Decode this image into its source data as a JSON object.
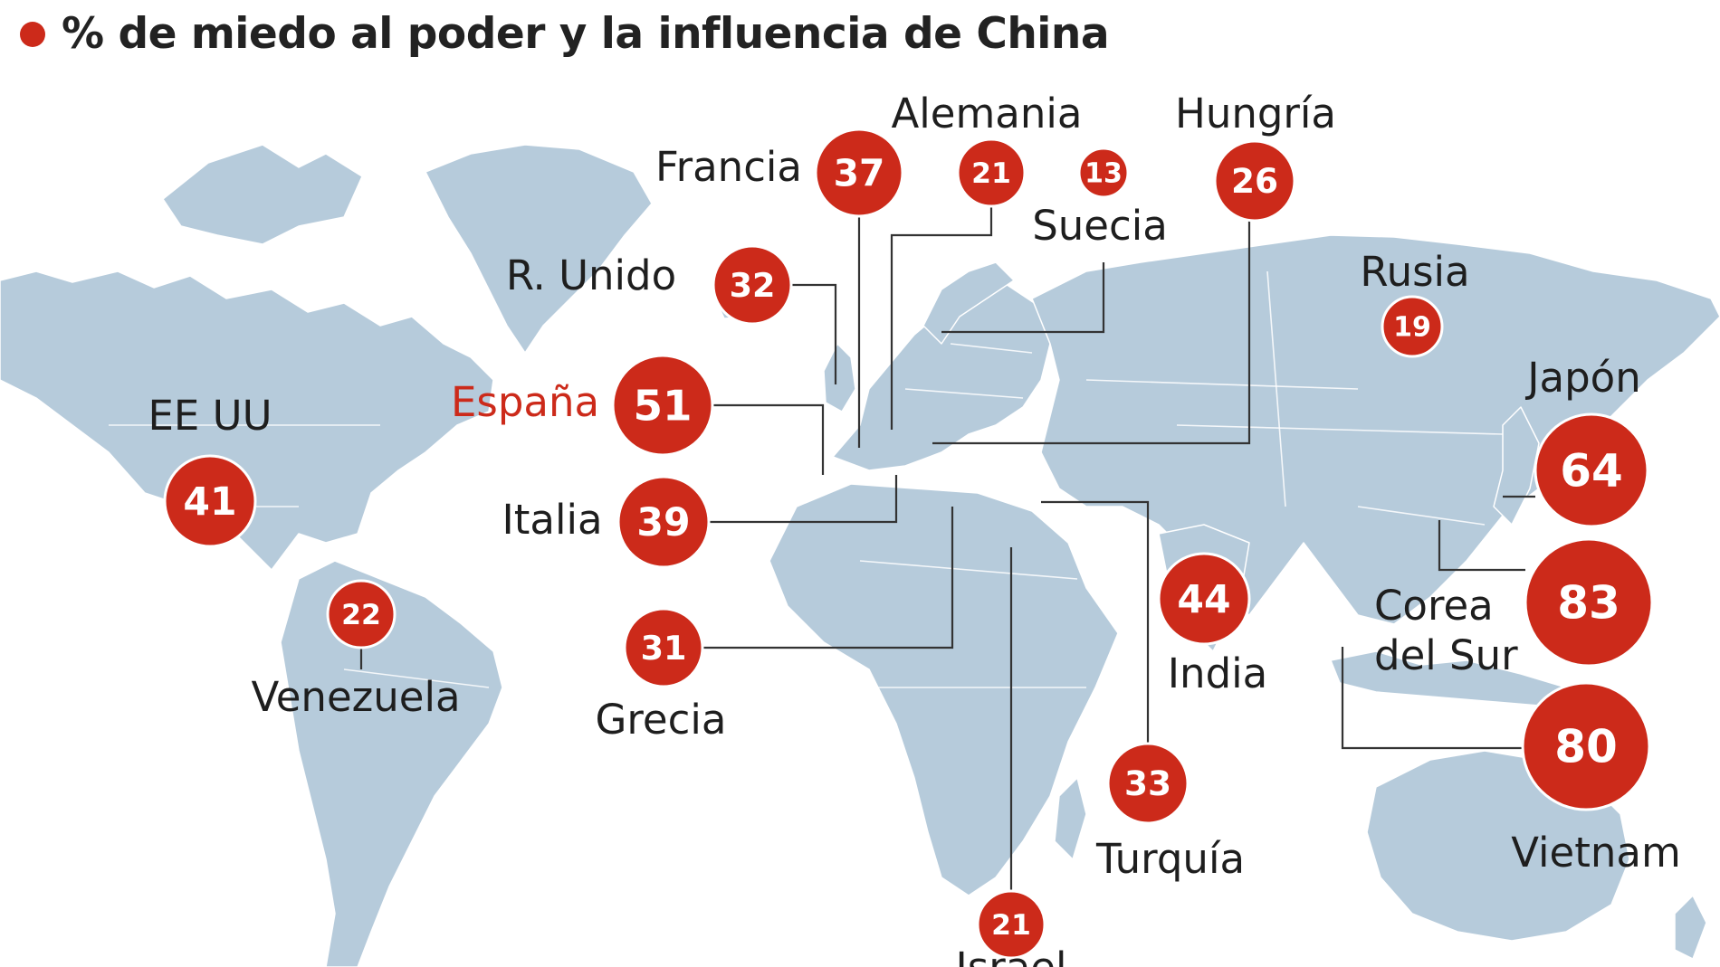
{
  "title": {
    "text": "% de miedo al poder y la influencia de China",
    "dot_color": "#cc2a1a"
  },
  "colors": {
    "land": "#b6cbdb",
    "borders": "#ffffff",
    "bubble": "#cc2a1a",
    "leader": "#333333",
    "highlight_label": "#cc2a1a",
    "label": "#1e1e1e"
  },
  "countries": [
    {
      "id": "eeuu",
      "name": "EE UU",
      "value": "41",
      "highlight": false
    },
    {
      "id": "venezuela",
      "name": "Venezuela",
      "value": "22",
      "highlight": false
    },
    {
      "id": "runido",
      "name": "R. Unido",
      "value": "32",
      "highlight": false
    },
    {
      "id": "francia",
      "name": "Francia",
      "value": "37",
      "highlight": false
    },
    {
      "id": "alemania",
      "name": "Alemania",
      "value": "21",
      "highlight": false
    },
    {
      "id": "suecia",
      "name": "Suecia",
      "value": "13",
      "highlight": false
    },
    {
      "id": "hungria",
      "name": "Hungría",
      "value": "26",
      "highlight": false
    },
    {
      "id": "espana",
      "name": "España",
      "value": "51",
      "highlight": true
    },
    {
      "id": "italia",
      "name": "Italia",
      "value": "39",
      "highlight": false
    },
    {
      "id": "grecia",
      "name": "Grecia",
      "value": "31",
      "highlight": false
    },
    {
      "id": "israel",
      "name": "Israel",
      "value": "21",
      "highlight": false
    },
    {
      "id": "turquia",
      "name": "Turquía",
      "value": "33",
      "highlight": false
    },
    {
      "id": "india",
      "name": "India",
      "value": "44",
      "highlight": false
    },
    {
      "id": "rusia",
      "name": "Rusia",
      "value": "19",
      "highlight": false
    },
    {
      "id": "japon",
      "name": "Japón",
      "value": "64",
      "highlight": false
    },
    {
      "id": "corea",
      "name": "Corea del Sur",
      "value": "83",
      "highlight": false
    },
    {
      "id": "vietnam",
      "name": "Vietnam",
      "value": "80",
      "highlight": false
    }
  ]
}
